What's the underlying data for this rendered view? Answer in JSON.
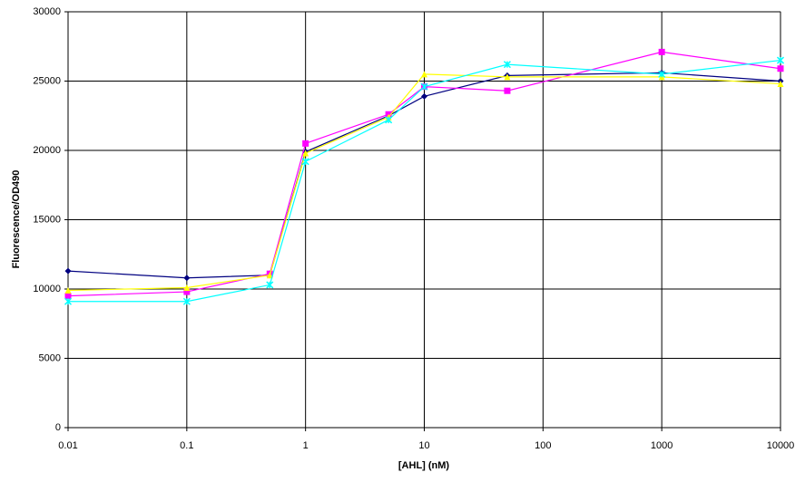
{
  "chart_data": {
    "type": "line",
    "x_label": "[AHL] (nM)",
    "y_label": "Fluorescence/OD490",
    "xscale": "log",
    "x": [
      0.01,
      0.1,
      0.5,
      1,
      5,
      10,
      50,
      1000,
      10000
    ],
    "xlim": [
      0.01,
      10000
    ],
    "xticks": [
      0.01,
      0.1,
      1,
      10,
      100,
      1000,
      10000
    ],
    "ylim": [
      0,
      30000
    ],
    "yticks": [
      0,
      5000,
      10000,
      15000,
      20000,
      25000,
      30000
    ],
    "grid": true,
    "series": [
      {
        "color": "#000080",
        "marker": "diamond",
        "values": [
          11300,
          10800,
          11000,
          19900,
          22500,
          23900,
          25400,
          25600,
          25000
        ]
      },
      {
        "color": "#ff00ff",
        "marker": "square",
        "values": [
          9500,
          9800,
          11100,
          20500,
          22600,
          24600,
          24300,
          27100,
          25900
        ]
      },
      {
        "color": "#ffff00",
        "marker": "triangle",
        "values": [
          9900,
          10100,
          11000,
          19800,
          22400,
          25500,
          25300,
          25300,
          24800
        ]
      },
      {
        "color": "#00ffff",
        "marker": "star",
        "values": [
          9100,
          9100,
          10300,
          19200,
          22200,
          24600,
          26200,
          25500,
          26500
        ]
      }
    ]
  }
}
